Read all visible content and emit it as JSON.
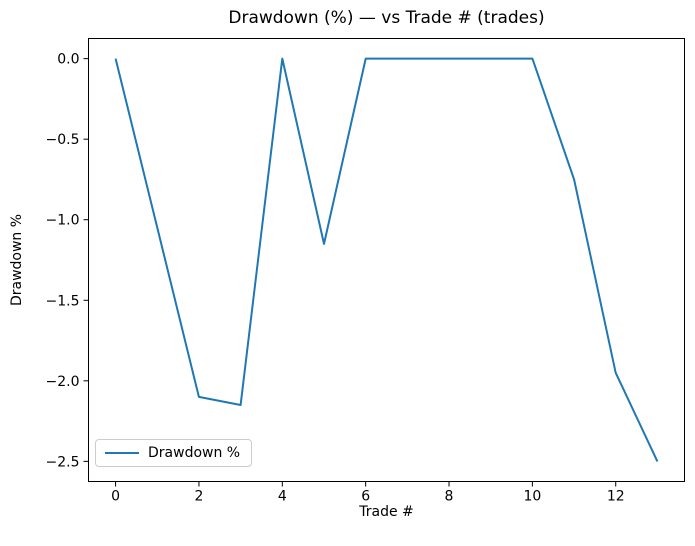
{
  "chart_data": {
    "type": "line",
    "title": "Drawdown (%) — vs Trade # (trades)",
    "xlabel": "Trade #",
    "ylabel": "Drawdown %",
    "x": [
      0,
      1,
      2,
      3,
      4,
      5,
      6,
      7,
      8,
      9,
      10,
      11,
      12,
      13
    ],
    "series": [
      {
        "name": "Drawdown %",
        "values": [
          0.0,
          -1.05,
          -2.1,
          -2.15,
          0.0,
          -1.15,
          0.0,
          0.0,
          0.0,
          0.0,
          0.0,
          -0.75,
          -1.95,
          -2.5
        ]
      }
    ],
    "xlim": [
      -0.65,
      13.65
    ],
    "ylim": [
      -2.625,
      0.125
    ],
    "xticks": [
      {
        "v": 0,
        "label": "0"
      },
      {
        "v": 2,
        "label": "2"
      },
      {
        "v": 4,
        "label": "4"
      },
      {
        "v": 6,
        "label": "6"
      },
      {
        "v": 8,
        "label": "8"
      },
      {
        "v": 10,
        "label": "10"
      },
      {
        "v": 12,
        "label": "12"
      }
    ],
    "yticks": [
      {
        "v": 0.0,
        "label": "0.0"
      },
      {
        "v": -0.5,
        "label": "−0.5"
      },
      {
        "v": -1.0,
        "label": "−1.0"
      },
      {
        "v": -1.5,
        "label": "−1.5"
      },
      {
        "v": -2.0,
        "label": "−2.0"
      },
      {
        "v": -2.5,
        "label": "−2.5"
      }
    ],
    "grid": false,
    "legend": {
      "label": "Drawdown %",
      "position": "lower-left"
    },
    "line_color": "#1f77b4",
    "axis_color": "#000000",
    "legend_border_color": "#cccccc",
    "background": "#ffffff"
  }
}
